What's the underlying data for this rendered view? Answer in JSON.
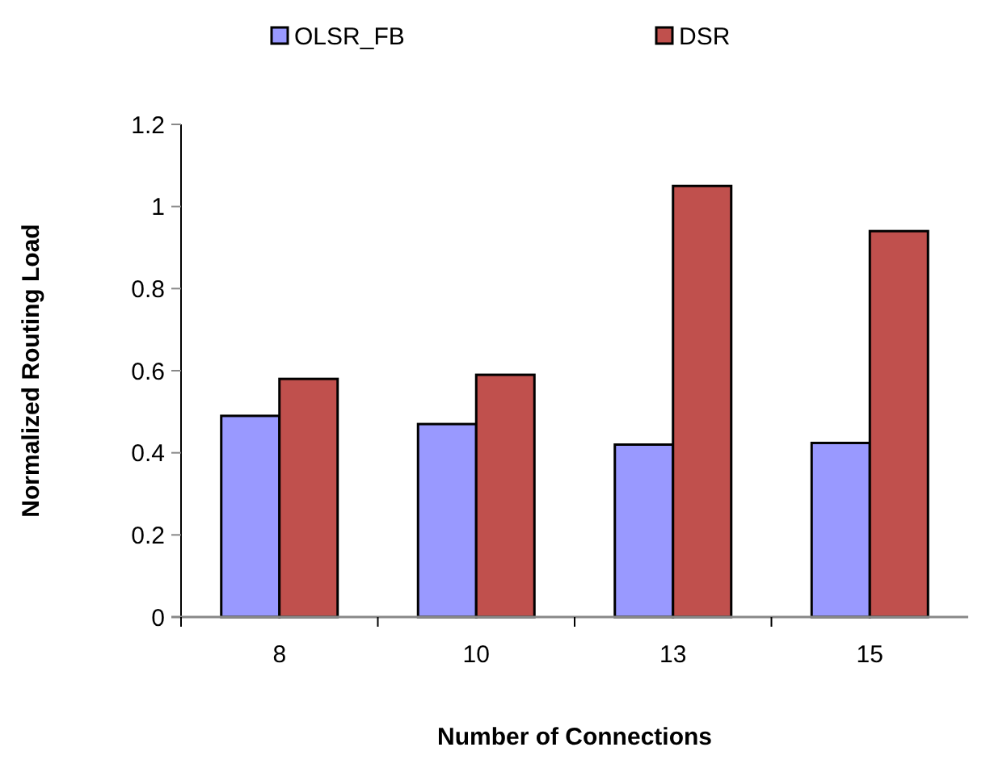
{
  "chart_data": {
    "type": "bar",
    "xlabel": "Number of Connections",
    "ylabel": "Normalized Routing Load",
    "categories": [
      "8",
      "10",
      "13",
      "15"
    ],
    "series": [
      {
        "name": "OLSR_FB",
        "color": "#9999ff",
        "values": [
          0.49,
          0.47,
          0.42,
          0.424
        ]
      },
      {
        "name": "DSR",
        "color": "#c0504d",
        "values": [
          0.58,
          0.59,
          1.05,
          0.94
        ]
      }
    ],
    "ylim": [
      0,
      1.2
    ],
    "yticks": [
      0,
      0.2,
      0.4,
      0.6,
      0.8,
      1,
      1.2
    ],
    "grid": false,
    "legend": "top"
  }
}
